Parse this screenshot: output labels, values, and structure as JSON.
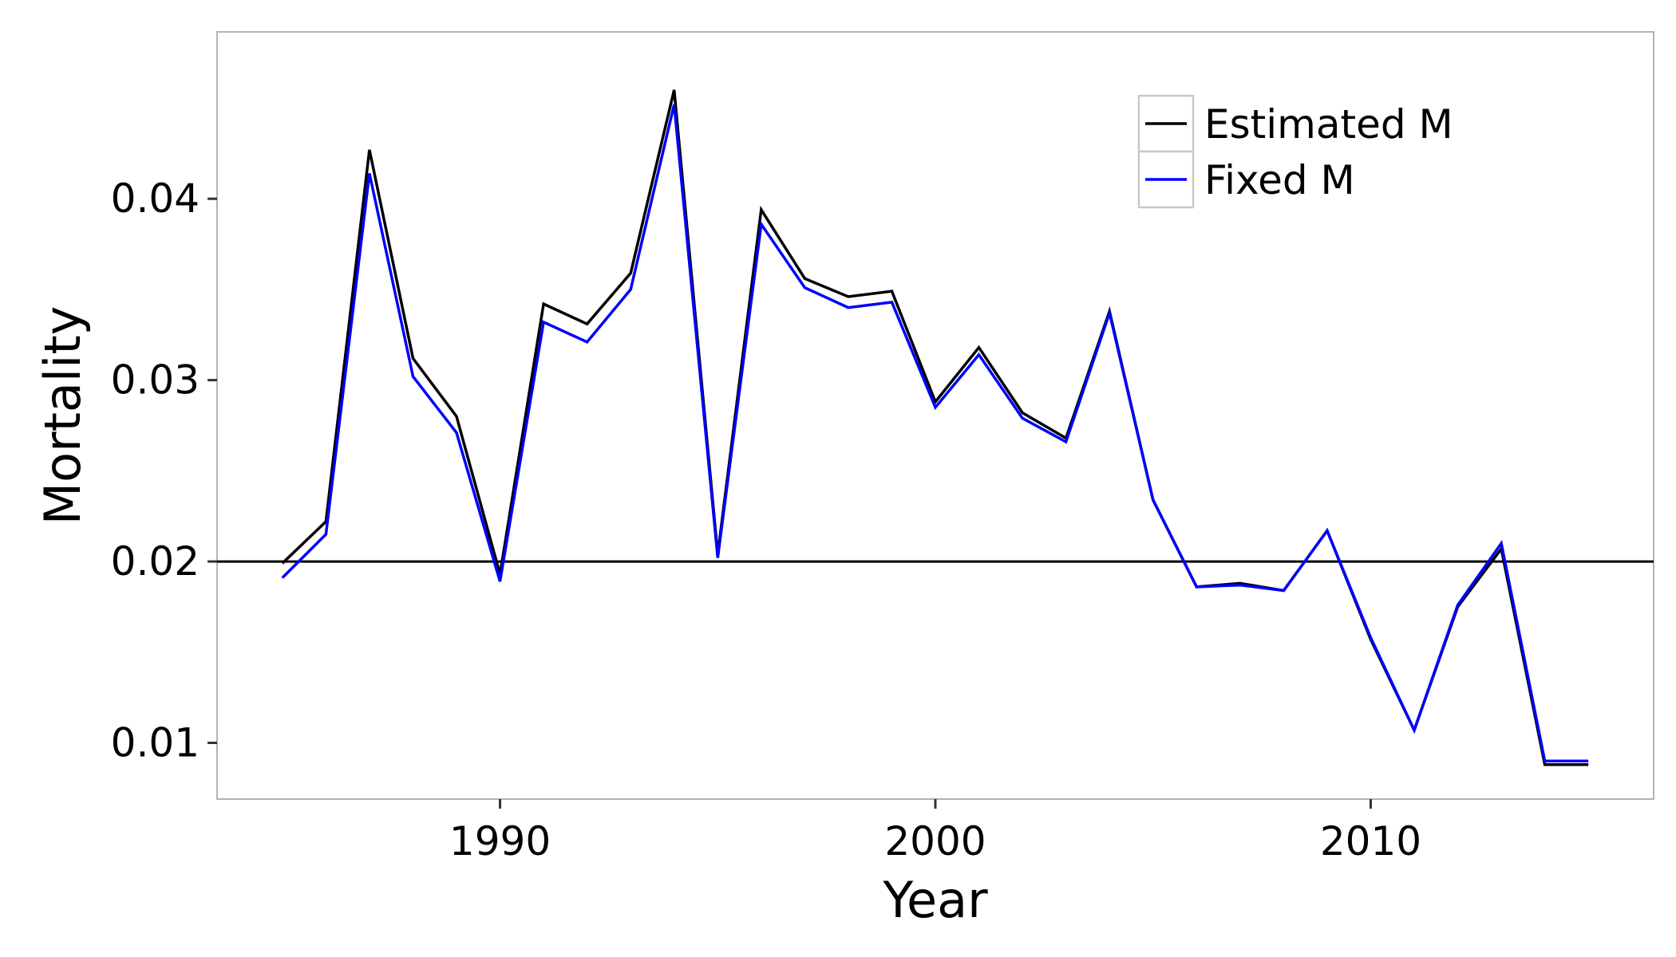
{
  "chart_data": {
    "type": "line",
    "title": "",
    "xlabel": "Year",
    "ylabel": "Mortality",
    "xlim": [
      1983.5,
      2016.5
    ],
    "ylim": [
      0.0069,
      0.0492
    ],
    "xticks": [
      1990,
      2000,
      2010
    ],
    "yticks": [
      0.01,
      0.02,
      0.03,
      0.04
    ],
    "xtick_labels": [
      "1990",
      "2000",
      "2010"
    ],
    "ytick_labels": [
      "0.01",
      "0.02",
      "0.03",
      "0.04"
    ],
    "grid": false,
    "legend_position": "top-right",
    "reference_line": {
      "y": 0.02,
      "color": "#000000"
    },
    "x": [
      1985,
      1986,
      1987,
      1988,
      1989,
      1990,
      1991,
      1992,
      1993,
      1994,
      1995,
      1996,
      1997,
      1998,
      1999,
      2000,
      2001,
      2002,
      2003,
      2004,
      2005,
      2006,
      2007,
      2008,
      2009,
      2010,
      2011,
      2012,
      2013,
      2014,
      2015
    ],
    "series": [
      {
        "name": "Estimated M",
        "color": "#000000",
        "values": [
          0.0199,
          0.0222,
          0.0427,
          0.0312,
          0.028,
          0.0193,
          0.0342,
          0.0331,
          0.0359,
          0.046,
          0.0204,
          0.0394,
          0.0356,
          0.0346,
          0.0349,
          0.0288,
          0.0318,
          0.0282,
          0.0268,
          0.0338,
          0.0234,
          0.0186,
          0.0188,
          0.0184,
          0.0217,
          0.0157,
          0.0107,
          0.0175,
          0.0207,
          0.0088,
          0.0088
        ]
      },
      {
        "name": "Fixed M",
        "color": "#0000ff",
        "values": [
          0.0191,
          0.0215,
          0.0414,
          0.0302,
          0.0271,
          0.0189,
          0.0332,
          0.0321,
          0.035,
          0.0452,
          0.0202,
          0.0386,
          0.0351,
          0.034,
          0.0343,
          0.0285,
          0.0314,
          0.0279,
          0.0266,
          0.0337,
          0.0234,
          0.0186,
          0.0187,
          0.0184,
          0.0217,
          0.0158,
          0.0107,
          0.0176,
          0.021,
          0.009,
          0.009
        ]
      }
    ]
  }
}
